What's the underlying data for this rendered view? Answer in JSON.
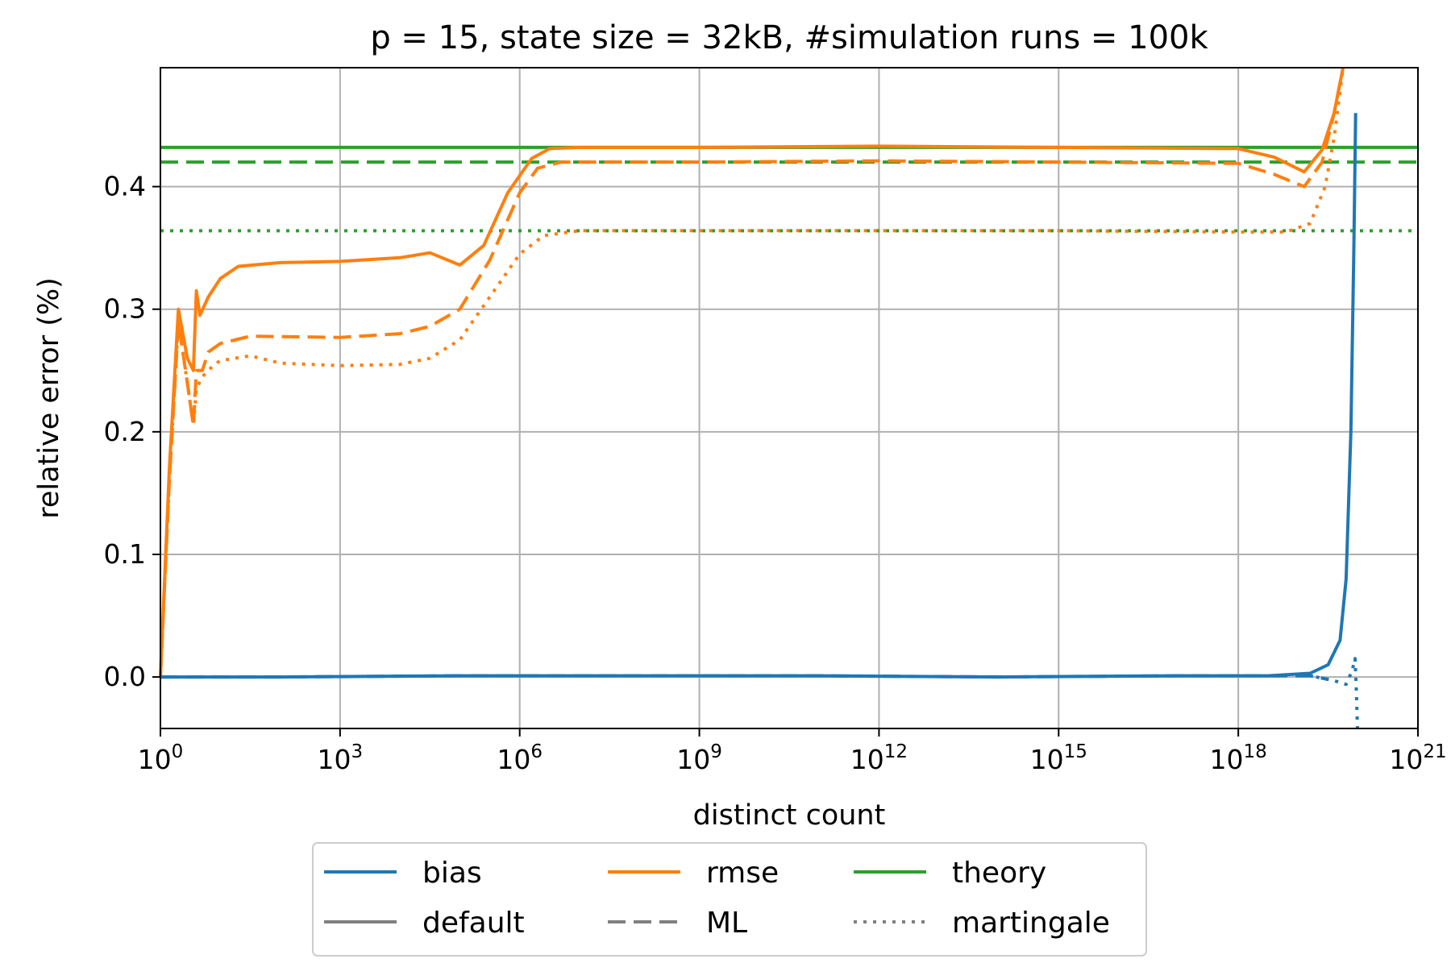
{
  "chart_data": {
    "type": "line",
    "title": "p = 15, state size = 32kB, #simulation runs = 100k",
    "xlabel": "distinct count",
    "ylabel": "relative error (%)",
    "xscale": "log10",
    "xlim_exp": [
      0,
      21
    ],
    "ylim": [
      -0.042,
      0.497
    ],
    "grid": true,
    "x_ticks": [
      {
        "base": "10",
        "exp": "0",
        "value": 0
      },
      {
        "base": "10",
        "exp": "3",
        "value": 3
      },
      {
        "base": "10",
        "exp": "6",
        "value": 6
      },
      {
        "base": "10",
        "exp": "9",
        "value": 9
      },
      {
        "base": "10",
        "exp": "12",
        "value": 12
      },
      {
        "base": "10",
        "exp": "15",
        "value": 15
      },
      {
        "base": "10",
        "exp": "18",
        "value": 18
      },
      {
        "base": "10",
        "exp": "21",
        "value": 21
      }
    ],
    "y_ticks": [
      {
        "label": "0.0",
        "value": 0.0
      },
      {
        "label": "0.1",
        "value": 0.1
      },
      {
        "label": "0.2",
        "value": 0.2
      },
      {
        "label": "0.3",
        "value": 0.3
      },
      {
        "label": "0.4",
        "value": 0.4
      }
    ],
    "colors": {
      "bias": "#1f77b4",
      "rmse": "#ff7f0e",
      "theory": "#2ca02c",
      "legend_style": "#808080"
    },
    "theory_lines": [
      {
        "name": "theory default",
        "value": 0.432,
        "style": "solid"
      },
      {
        "name": "theory ML",
        "value": 0.42,
        "style": "dashed"
      },
      {
        "name": "theory martingale",
        "value": 0.364,
        "style": "dotted"
      }
    ],
    "series": [
      {
        "name": "rmse default",
        "metric": "rmse",
        "style": "solid",
        "points": [
          [
            0,
            0
          ],
          [
            0.15,
            0.17
          ],
          [
            0.3,
            0.3
          ],
          [
            0.45,
            0.26
          ],
          [
            0.55,
            0.25
          ],
          [
            0.6,
            0.315
          ],
          [
            0.66,
            0.295
          ],
          [
            0.8,
            0.31
          ],
          [
            1,
            0.325
          ],
          [
            1.3,
            0.335
          ],
          [
            2,
            0.338
          ],
          [
            3,
            0.339
          ],
          [
            4,
            0.342
          ],
          [
            4.5,
            0.346
          ],
          [
            5,
            0.336
          ],
          [
            5.4,
            0.352
          ],
          [
            5.8,
            0.395
          ],
          [
            6.2,
            0.423
          ],
          [
            6.5,
            0.431
          ],
          [
            7,
            0.432
          ],
          [
            9,
            0.432
          ],
          [
            12,
            0.433
          ],
          [
            15,
            0.432
          ],
          [
            18,
            0.431
          ],
          [
            18.6,
            0.424
          ],
          [
            19.1,
            0.412
          ],
          [
            19.4,
            0.43
          ],
          [
            19.6,
            0.46
          ],
          [
            19.75,
            0.497
          ]
        ]
      },
      {
        "name": "rmse ML",
        "metric": "rmse",
        "style": "dashed",
        "points": [
          [
            0,
            0
          ],
          [
            0.15,
            0.16
          ],
          [
            0.3,
            0.29
          ],
          [
            0.45,
            0.24
          ],
          [
            0.55,
            0.205
          ],
          [
            0.6,
            0.25
          ],
          [
            0.7,
            0.25
          ],
          [
            0.8,
            0.265
          ],
          [
            1,
            0.272
          ],
          [
            1.5,
            0.278
          ],
          [
            3,
            0.277
          ],
          [
            4,
            0.28
          ],
          [
            4.5,
            0.286
          ],
          [
            5,
            0.3
          ],
          [
            5.5,
            0.34
          ],
          [
            6,
            0.395
          ],
          [
            6.3,
            0.415
          ],
          [
            6.7,
            0.42
          ],
          [
            9,
            0.42
          ],
          [
            12,
            0.421
          ],
          [
            15,
            0.42
          ],
          [
            18,
            0.419
          ],
          [
            18.6,
            0.41
          ],
          [
            19.1,
            0.4
          ],
          [
            19.4,
            0.42
          ],
          [
            19.6,
            0.46
          ],
          [
            19.75,
            0.497
          ]
        ]
      },
      {
        "name": "rmse martingale",
        "metric": "rmse",
        "style": "dotted",
        "points": [
          [
            0,
            0
          ],
          [
            0.15,
            0.16
          ],
          [
            0.3,
            0.29
          ],
          [
            0.45,
            0.24
          ],
          [
            0.55,
            0.205
          ],
          [
            0.6,
            0.235
          ],
          [
            0.7,
            0.245
          ],
          [
            0.9,
            0.255
          ],
          [
            1,
            0.258
          ],
          [
            1.5,
            0.262
          ],
          [
            2,
            0.256
          ],
          [
            3,
            0.254
          ],
          [
            4,
            0.255
          ],
          [
            4.5,
            0.26
          ],
          [
            5,
            0.275
          ],
          [
            5.5,
            0.31
          ],
          [
            6,
            0.345
          ],
          [
            6.4,
            0.36
          ],
          [
            7,
            0.364
          ],
          [
            9,
            0.364
          ],
          [
            12,
            0.364
          ],
          [
            15,
            0.364
          ],
          [
            18,
            0.363
          ],
          [
            18.8,
            0.363
          ],
          [
            19.2,
            0.37
          ],
          [
            19.45,
            0.4
          ],
          [
            19.6,
            0.44
          ],
          [
            19.75,
            0.497
          ]
        ]
      },
      {
        "name": "bias default",
        "metric": "bias",
        "style": "solid",
        "points": [
          [
            0,
            0
          ],
          [
            2,
            0.0
          ],
          [
            5,
            0.001
          ],
          [
            8,
            0.001
          ],
          [
            11,
            0.001
          ],
          [
            14,
            0.0
          ],
          [
            17,
            0.001
          ],
          [
            18.5,
            0.001
          ],
          [
            19.2,
            0.003
          ],
          [
            19.5,
            0.01
          ],
          [
            19.7,
            0.03
          ],
          [
            19.8,
            0.08
          ],
          [
            19.88,
            0.2
          ],
          [
            19.93,
            0.35
          ],
          [
            19.96,
            0.46
          ]
        ]
      },
      {
        "name": "bias ML",
        "metric": "bias",
        "style": "dashed",
        "points": [
          [
            0,
            0
          ],
          [
            2,
            0.0
          ],
          [
            5,
            0.001
          ],
          [
            8,
            0.001
          ],
          [
            11,
            0.001
          ],
          [
            14,
            0.0
          ],
          [
            17,
            0.001
          ],
          [
            18.5,
            0.001
          ],
          [
            19.2,
            0.001
          ],
          [
            19.5,
            -0.002
          ]
        ]
      },
      {
        "name": "bias martingale",
        "metric": "bias",
        "style": "dotted",
        "points": [
          [
            19.3,
            0.0
          ],
          [
            19.6,
            -0.003
          ],
          [
            19.8,
            -0.006
          ],
          [
            19.9,
            0.005
          ],
          [
            19.95,
            0.015
          ],
          [
            19.97,
            -0.01
          ],
          [
            19.99,
            -0.042
          ]
        ]
      }
    ],
    "legend": {
      "placement": "below",
      "entries": [
        {
          "label": "bias",
          "key": "bias",
          "style": "solid"
        },
        {
          "label": "rmse",
          "key": "rmse",
          "style": "solid"
        },
        {
          "label": "theory",
          "key": "theory",
          "style": "solid"
        },
        {
          "label": "default",
          "key": "legend_style",
          "style": "solid"
        },
        {
          "label": "ML",
          "key": "legend_style",
          "style": "dashed"
        },
        {
          "label": "martingale",
          "key": "legend_style",
          "style": "dotted"
        }
      ]
    }
  }
}
